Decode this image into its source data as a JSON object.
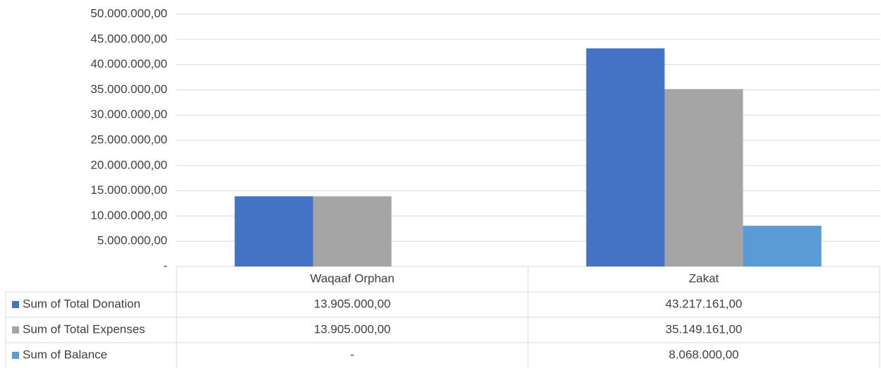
{
  "chart_data": {
    "type": "bar",
    "categories": [
      "Waqaaf Orphan",
      "Zakat"
    ],
    "series": [
      {
        "name": "Sum of Total Donation",
        "color": "#4472c4",
        "values": [
          13905000,
          43217161
        ],
        "value_labels": [
          "13.905.000,00",
          "43.217.161,00"
        ]
      },
      {
        "name": "Sum of Total Expenses",
        "color": "#a5a5a5",
        "values": [
          13905000,
          35149161
        ],
        "value_labels": [
          "13.905.000,00",
          "35.149.161,00"
        ]
      },
      {
        "name": "Sum of Balance",
        "color": "#5b9bd5",
        "values": [
          0,
          8068000
        ],
        "value_labels": [
          "-",
          "8.068.000,00"
        ]
      }
    ],
    "ylim": [
      0,
      50000000
    ],
    "yticks": [
      {
        "value": 0,
        "label": "-"
      },
      {
        "value": 5000000,
        "label": "5.000.000,00"
      },
      {
        "value": 10000000,
        "label": "10.000.000,00"
      },
      {
        "value": 15000000,
        "label": "15.000.000,00"
      },
      {
        "value": 20000000,
        "label": "20.000.000,00"
      },
      {
        "value": 25000000,
        "label": "25.000.000,00"
      },
      {
        "value": 30000000,
        "label": "30.000.000,00"
      },
      {
        "value": 35000000,
        "label": "35.000.000,00"
      },
      {
        "value": 40000000,
        "label": "40.000.000,00"
      },
      {
        "value": 45000000,
        "label": "45.000.000,00"
      },
      {
        "value": 50000000,
        "label": "50.000.000,00"
      }
    ],
    "grid": true,
    "data_table": true
  }
}
